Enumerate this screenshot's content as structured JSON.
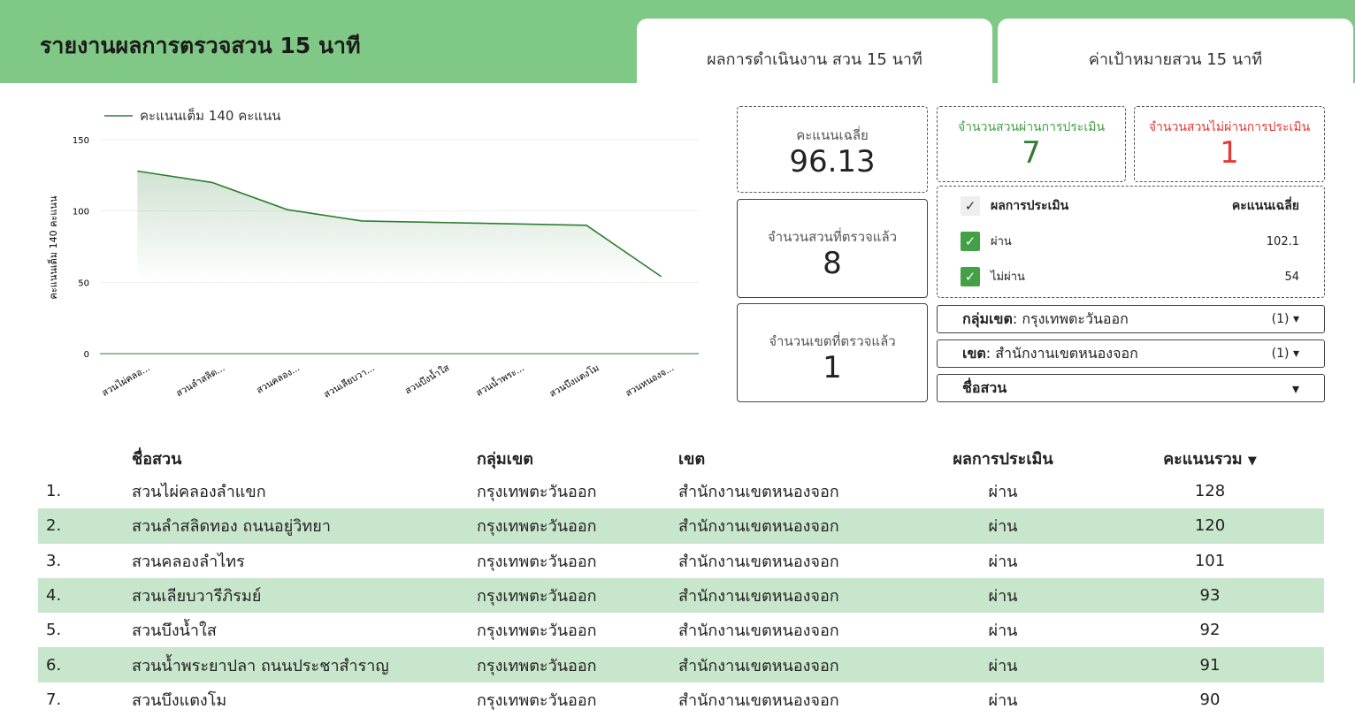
{
  "header": {
    "title": "รายงานผลการตรวจสวน 15 นาที",
    "tabs": [
      "ผลการดำเนินงาน สวน 15 นาที",
      "ค่าเป้าหมายสวน 15 นาที"
    ]
  },
  "chart_data": {
    "type": "area",
    "legend": "คะแนนเต็ม 140 คะแนน",
    "ylabel": "คะแนนเต็ม 140 คะแนน",
    "ylim": [
      0,
      150
    ],
    "yticks": [
      0,
      50,
      100,
      150
    ],
    "categories": [
      "สวนไผ่คลอ...",
      "สวนลำสลิด...",
      "สวนคลอง...",
      "สวนเลียบวา...",
      "สวนบึงน้ำใส",
      "สวนน้ำพระ...",
      "สวนบึงแตงโม",
      "สวนหนองจ..."
    ],
    "values": [
      128,
      120,
      101,
      93,
      92,
      91,
      90,
      54
    ],
    "color": "#2e7d32"
  },
  "cards": {
    "avg_label": "คะแนนเฉลี่ย",
    "avg": "96.13",
    "checked_label": "จำนวนสวนที่ตรวจแล้ว",
    "checked": "8",
    "district_label": "จำนวนเขตที่ตรวจแล้ว",
    "district": "1",
    "pass_label": "จำนวนสวนผ่านการประเมิน",
    "pass": "7",
    "fail_label": "จำนวนสวนไม่ผ่านการประเมิน",
    "fail": "1"
  },
  "legendtable": {
    "h1": "ผลการประเมิน",
    "h2": "คะแนนเฉลี่ย",
    "rows": [
      [
        "ผ่าน",
        "102.1"
      ],
      [
        "ไม่ผ่าน",
        "54"
      ]
    ]
  },
  "filters": [
    {
      "label": "กลุ่มเขต",
      "value": "กรุงเทพตะวันออก",
      "count": "(1)"
    },
    {
      "label": "เขต",
      "value": "สำนักงานเขตหนองจอก",
      "count": "(1)"
    },
    {
      "label": "ชื่อสวน",
      "value": "",
      "count": ""
    }
  ],
  "table": {
    "headers": [
      "ชื่อสวน",
      "กลุ่มเขต",
      "เขต",
      "ผลการประเมิน",
      "คะแนนรวม"
    ],
    "rows": [
      [
        "1.",
        "สวนไผ่คลองลำแขก",
        "กรุงเทพตะวันออก",
        "สำนักงานเขตหนองจอก",
        "ผ่าน",
        "128"
      ],
      [
        "2.",
        "สวนลำสลิดทอง ถนนอยู่วิทยา",
        "กรุงเทพตะวันออก",
        "สำนักงานเขตหนองจอก",
        "ผ่าน",
        "120"
      ],
      [
        "3.",
        "สวนคลองลำไทร",
        "กรุงเทพตะวันออก",
        "สำนักงานเขตหนองจอก",
        "ผ่าน",
        "101"
      ],
      [
        "4.",
        "สวนเลียบวารีภิรมย์",
        "กรุงเทพตะวันออก",
        "สำนักงานเขตหนองจอก",
        "ผ่าน",
        "93"
      ],
      [
        "5.",
        "สวนบึงน้ำใส",
        "กรุงเทพตะวันออก",
        "สำนักงานเขตหนองจอก",
        "ผ่าน",
        "92"
      ],
      [
        "6.",
        "สวนน้ำพระยาปลา ถนนประชาสำราญ",
        "กรุงเทพตะวันออก",
        "สำนักงานเขตหนองจอก",
        "ผ่าน",
        "91"
      ],
      [
        "7.",
        "สวนบึงแตงโม",
        "กรุงเทพตะวันออก",
        "สำนักงานเขตหนองจอก",
        "ผ่าน",
        "90"
      ]
    ]
  }
}
